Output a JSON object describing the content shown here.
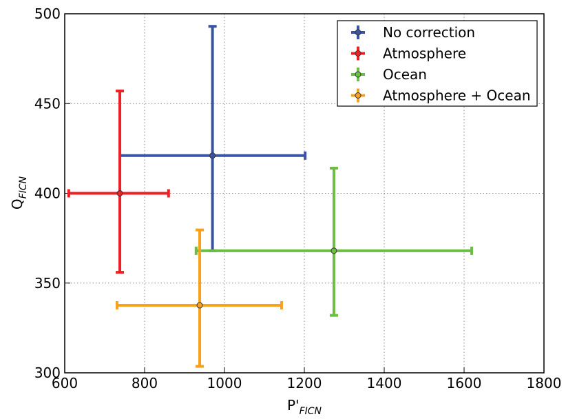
{
  "chart_data": {
    "type": "errorbar",
    "xlabel": "P'",
    "xlabel_sub": "FICN",
    "ylabel": "Q",
    "ylabel_sub": "FICN",
    "xlim": [
      600,
      1800
    ],
    "xticks": [
      600,
      800,
      1000,
      1200,
      1400,
      1600,
      1800
    ],
    "ylim": [
      300,
      500
    ],
    "yticks": [
      300,
      350,
      400,
      450,
      500
    ],
    "grid": true,
    "legend": "upper right",
    "series": [
      {
        "name": "No correction",
        "color": "#3a53a4",
        "x": [
          970
        ],
        "values": [
          421
        ],
        "xerr_minus": [
          232
        ],
        "xerr_plus": [
          232
        ],
        "yerr_minus": [
          53
        ],
        "yerr_plus": [
          72
        ]
      },
      {
        "name": "Atmosphere",
        "color": "#ed2024",
        "x": [
          738
        ],
        "values": [
          400
        ],
        "xerr_minus": [
          128
        ],
        "xerr_plus": [
          122
        ],
        "yerr_minus": [
          44
        ],
        "yerr_plus": [
          57
        ]
      },
      {
        "name": "Ocean",
        "color": "#6cbd45",
        "x": [
          1274
        ],
        "values": [
          368
        ],
        "xerr_minus": [
          345
        ],
        "xerr_plus": [
          345
        ],
        "yerr_minus": [
          36
        ],
        "yerr_plus": [
          46
        ]
      },
      {
        "name": "Atmosphere + Ocean",
        "color": "#f7a21c",
        "x": [
          938
        ],
        "values": [
          337.6
        ],
        "xerr_minus": [
          207
        ],
        "xerr_plus": [
          205
        ],
        "yerr_minus": [
          34
        ],
        "yerr_plus": [
          42
        ]
      }
    ]
  }
}
